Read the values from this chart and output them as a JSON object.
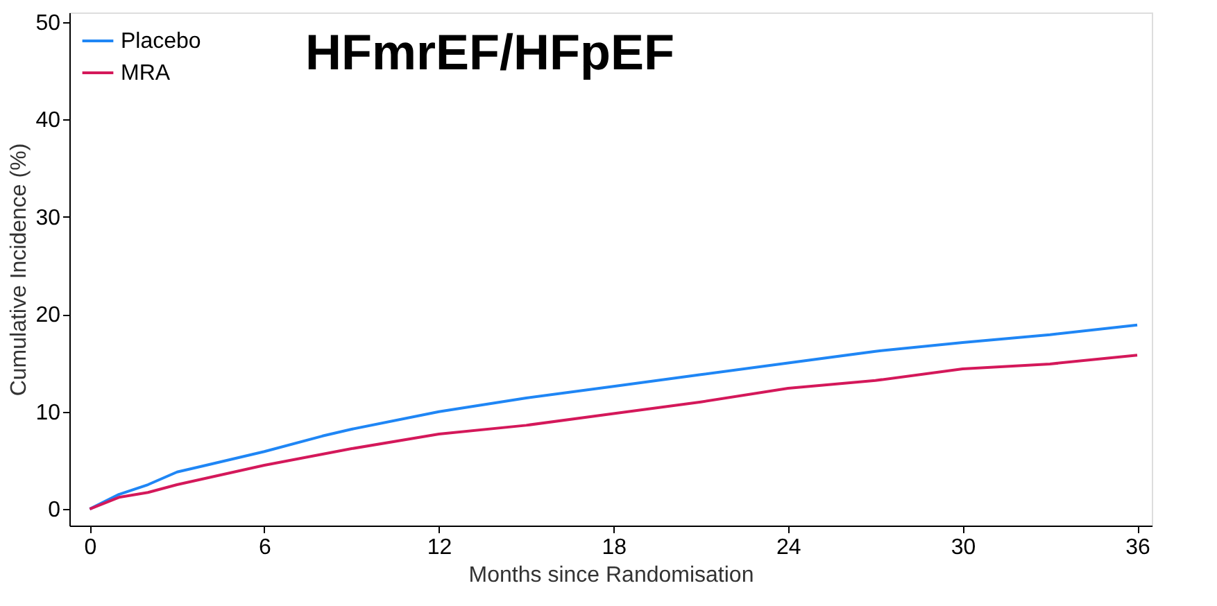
{
  "chart_data": {
    "type": "line",
    "title": "HFmrEF/HFpEF",
    "xlabel": "Months since Randomisation",
    "ylabel": "Cumulative Incidence (%)",
    "xlim": [
      -0.7,
      36.5
    ],
    "xticks": [
      0,
      6,
      12,
      18,
      24,
      30,
      36
    ],
    "ylim": [
      -1.7,
      51
    ],
    "yticks": [
      0,
      10,
      20,
      30,
      40,
      50
    ],
    "grid": false,
    "legend": "top left",
    "line_style": "solid",
    "marker": "none",
    "series": [
      {
        "name": "Placebo",
        "color": "#1f86f5",
        "x": [
          0,
          1,
          2,
          3,
          4,
          6,
          8,
          9,
          12,
          15,
          18,
          21,
          24,
          27,
          30,
          33,
          36
        ],
        "values": [
          0,
          1.5,
          2.5,
          3.8,
          4.5,
          5.9,
          7.5,
          8.2,
          10.0,
          11.4,
          12.6,
          13.8,
          15.0,
          16.2,
          17.1,
          17.9,
          18.9
        ]
      },
      {
        "name": "MRA",
        "color": "#d4185a",
        "x": [
          0,
          1,
          2,
          3,
          6,
          9,
          12,
          15,
          18,
          21,
          24,
          27,
          30,
          33,
          36
        ],
        "values": [
          0,
          1.2,
          1.7,
          2.5,
          4.5,
          6.2,
          7.7,
          8.6,
          9.8,
          11.0,
          12.4,
          13.2,
          14.4,
          14.9,
          15.8
        ]
      }
    ]
  }
}
